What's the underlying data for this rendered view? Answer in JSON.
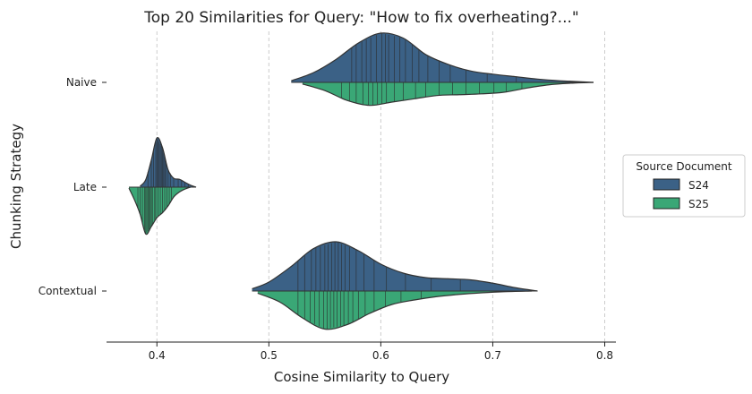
{
  "chart_data": {
    "type": "violin",
    "orientation": "horizontal",
    "split": true,
    "title": "Top 20 Similarities for Query: \"How to fix overheating?...\"",
    "xlabel": "Cosine Similarity to Query",
    "ylabel": "Chunking Strategy",
    "xlim": [
      0.355,
      0.81
    ],
    "xticks": [
      0.4,
      0.5,
      0.6,
      0.7,
      0.8
    ],
    "xtick_labels": [
      "0.4",
      "0.5",
      "0.6",
      "0.7",
      "0.8"
    ],
    "grid": "x-dashed",
    "categories": [
      "Naive",
      "Late",
      "Contextual"
    ],
    "legend": {
      "title": "Source Document",
      "placement": "right",
      "entries": [
        {
          "name": "S24",
          "color": "#3b6186"
        },
        {
          "name": "S25",
          "color": "#3aa776"
        }
      ]
    },
    "series": [
      {
        "name": "S24",
        "side": "upper",
        "color": "#3b6186",
        "groups": [
          {
            "category": "Naive",
            "range": [
              0.52,
              0.79
            ],
            "density": [
              [
                0.52,
                0.01
              ],
              [
                0.54,
                0.06
              ],
              [
                0.56,
                0.14
              ],
              [
                0.58,
                0.24
              ],
              [
                0.6,
                0.3
              ],
              [
                0.62,
                0.27
              ],
              [
                0.64,
                0.17
              ],
              [
                0.66,
                0.11
              ],
              [
                0.68,
                0.07
              ],
              [
                0.7,
                0.05
              ],
              [
                0.72,
                0.035
              ],
              [
                0.74,
                0.02
              ],
              [
                0.76,
                0.01
              ],
              [
                0.79,
                0.0
              ]
            ],
            "points": [
              0.574,
              0.578,
              0.583,
              0.587,
              0.591,
              0.596,
              0.601,
              0.604,
              0.607,
              0.612,
              0.617,
              0.622,
              0.628,
              0.634,
              0.642,
              0.652,
              0.662,
              0.676,
              0.695,
              0.721
            ]
          },
          {
            "category": "Late",
            "range": [
              0.385,
              0.435
            ],
            "density": [
              [
                0.385,
                0.02
              ],
              [
                0.39,
                0.15
              ],
              [
                0.395,
                0.55
              ],
              [
                0.4,
                1.0
              ],
              [
                0.405,
                0.8
              ],
              [
                0.41,
                0.35
              ],
              [
                0.415,
                0.18
              ],
              [
                0.42,
                0.16
              ],
              [
                0.425,
                0.1
              ],
              [
                0.43,
                0.04
              ],
              [
                0.435,
                0.0
              ]
            ],
            "points": [
              0.392,
              0.395,
              0.397,
              0.399,
              0.4,
              0.401,
              0.402,
              0.403,
              0.404,
              0.405,
              0.406,
              0.407,
              0.408,
              0.41,
              0.412,
              0.415,
              0.419,
              0.422,
              0.425,
              0.428
            ]
          },
          {
            "category": "Contextual",
            "range": [
              0.485,
              0.74
            ],
            "density": [
              [
                0.485,
                0.01
              ],
              [
                0.5,
                0.04
              ],
              [
                0.52,
                0.11
              ],
              [
                0.54,
                0.19
              ],
              [
                0.56,
                0.22
              ],
              [
                0.58,
                0.18
              ],
              [
                0.6,
                0.12
              ],
              [
                0.62,
                0.08
              ],
              [
                0.64,
                0.06
              ],
              [
                0.66,
                0.055
              ],
              [
                0.68,
                0.05
              ],
              [
                0.7,
                0.035
              ],
              [
                0.72,
                0.015
              ],
              [
                0.74,
                0.0
              ]
            ],
            "points": [
              0.526,
              0.532,
              0.538,
              0.542,
              0.546,
              0.55,
              0.553,
              0.556,
              0.559,
              0.562,
              0.565,
              0.568,
              0.572,
              0.578,
              0.585,
              0.594,
              0.605,
              0.622,
              0.645,
              0.671
            ]
          }
        ]
      },
      {
        "name": "S25",
        "side": "lower",
        "color": "#3aa776",
        "groups": [
          {
            "category": "Naive",
            "range": [
              0.53,
              0.79
            ],
            "density": [
              [
                0.53,
                0.01
              ],
              [
                0.55,
                0.05
              ],
              [
                0.57,
                0.11
              ],
              [
                0.59,
                0.14
              ],
              [
                0.61,
                0.12
              ],
              [
                0.63,
                0.1
              ],
              [
                0.65,
                0.08
              ],
              [
                0.67,
                0.075
              ],
              [
                0.69,
                0.07
              ],
              [
                0.71,
                0.06
              ],
              [
                0.73,
                0.035
              ],
              [
                0.75,
                0.015
              ],
              [
                0.77,
                0.005
              ],
              [
                0.79,
                0.0
              ]
            ],
            "points": [
              0.565,
              0.572,
              0.578,
              0.584,
              0.589,
              0.593,
              0.597,
              0.601,
              0.605,
              0.612,
              0.62,
              0.631,
              0.64,
              0.652,
              0.664,
              0.676,
              0.688,
              0.701,
              0.712,
              0.726
            ]
          },
          {
            "category": "Late",
            "range": [
              0.375,
              0.43
            ],
            "density": [
              [
                0.375,
                0.02
              ],
              [
                0.38,
                0.26
              ],
              [
                0.385,
                0.55
              ],
              [
                0.39,
                0.95
              ],
              [
                0.395,
                0.8
              ],
              [
                0.4,
                0.62
              ],
              [
                0.405,
                0.52
              ],
              [
                0.41,
                0.38
              ],
              [
                0.415,
                0.2
              ],
              [
                0.42,
                0.1
              ],
              [
                0.425,
                0.04
              ],
              [
                0.43,
                0.0
              ]
            ],
            "points": [
              0.383,
              0.385,
              0.387,
              0.389,
              0.39,
              0.391,
              0.392,
              0.393,
              0.394,
              0.395,
              0.396,
              0.398,
              0.399,
              0.401,
              0.403,
              0.405,
              0.407,
              0.409,
              0.411,
              0.413
            ]
          },
          {
            "category": "Contextual",
            "range": [
              0.49,
              0.735
            ],
            "density": [
              [
                0.49,
                0.01
              ],
              [
                0.51,
                0.05
              ],
              [
                0.53,
                0.12
              ],
              [
                0.55,
                0.17
              ],
              [
                0.57,
                0.15
              ],
              [
                0.59,
                0.1
              ],
              [
                0.61,
                0.06
              ],
              [
                0.63,
                0.04
              ],
              [
                0.65,
                0.025
              ],
              [
                0.67,
                0.015
              ],
              [
                0.69,
                0.008
              ],
              [
                0.71,
                0.003
              ],
              [
                0.735,
                0.0
              ]
            ],
            "points": [
              0.526,
              0.532,
              0.537,
              0.541,
              0.545,
              0.549,
              0.552,
              0.555,
              0.558,
              0.561,
              0.564,
              0.567,
              0.571,
              0.575,
              0.58,
              0.586,
              0.594,
              0.604,
              0.618,
              0.636
            ]
          }
        ]
      }
    ]
  }
}
